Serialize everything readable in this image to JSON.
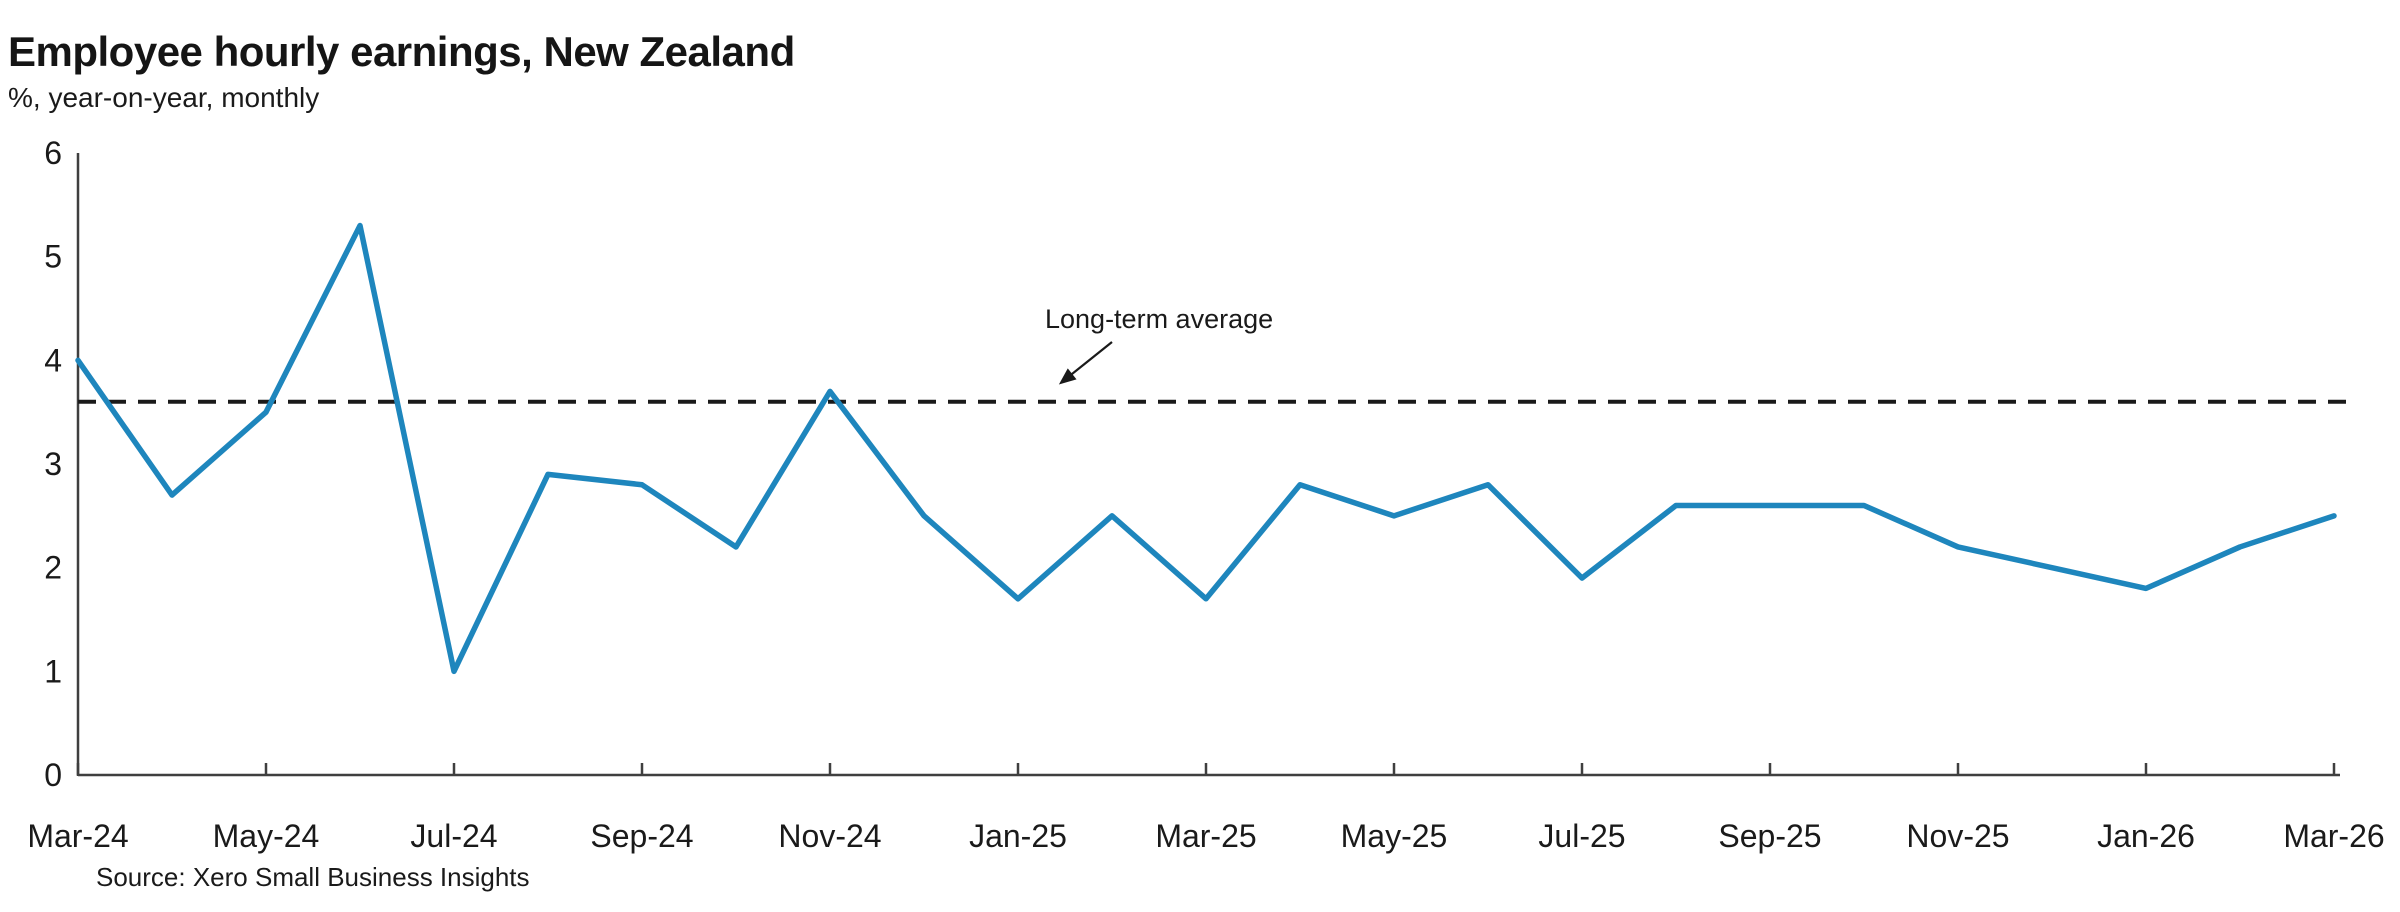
{
  "header": {
    "title": "Employee hourly earnings, New Zealand",
    "subtitle": "%, year-on-year, monthly"
  },
  "footer": {
    "source": "Source: Xero Small Business Insights"
  },
  "colors": {
    "line": "#1E86BD",
    "average_line": "#1A1A1A",
    "axis": "#3F3F3F",
    "text": "#1A1A1A"
  },
  "chart_data": {
    "type": "line",
    "title": "Employee hourly earnings, New Zealand",
    "subtitle": "%, year-on-year, monthly",
    "x": [
      "Mar-24",
      "Apr-24",
      "May-24",
      "Jun-24",
      "Jul-24",
      "Aug-24",
      "Sep-24",
      "Oct-24",
      "Nov-24",
      "Dec-24",
      "Jan-25",
      "Feb-25",
      "Mar-25",
      "Apr-25",
      "May-25",
      "Jun-25",
      "Jul-25",
      "Aug-25",
      "Sep-25",
      "Oct-25",
      "Nov-25",
      "Dec-25",
      "Jan-26",
      "Feb-26",
      "Mar-26"
    ],
    "series": [
      {
        "name": "Employee hourly earnings, year-on-year %",
        "values": [
          4.0,
          2.7,
          3.5,
          5.3,
          1.0,
          2.9,
          2.8,
          2.2,
          3.7,
          2.5,
          1.7,
          2.5,
          1.7,
          2.8,
          2.5,
          2.8,
          1.9,
          2.6,
          2.6,
          2.6,
          2.2,
          2.0,
          1.8,
          2.2,
          2.5
        ]
      }
    ],
    "average_line": {
      "label": "Long-term average",
      "value": 3.6
    },
    "ylim": [
      0,
      6
    ],
    "yticks": [
      0,
      1,
      2,
      3,
      4,
      5,
      6
    ],
    "xtick_every": 2,
    "xtick_labels": [
      "Mar-24",
      "May-24",
      "Jul-24",
      "Sep-24",
      "Nov-24",
      "Jan-25",
      "Mar-25",
      "May-25",
      "Jul-25",
      "Sep-25",
      "Nov-25",
      "Jan-26",
      "Mar-26"
    ],
    "grid": false,
    "legend": "none"
  }
}
